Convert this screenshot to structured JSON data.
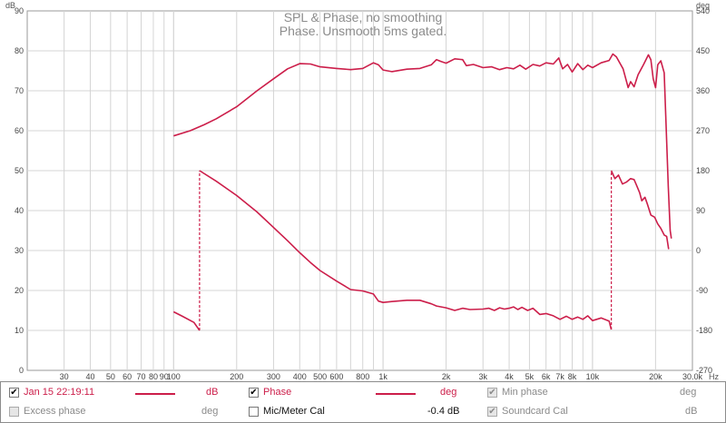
{
  "chart_data": {
    "type": "line",
    "title": "SPL & Phase, no smoothing",
    "subtitle": "Phase. Unsmooth 5ms gated.",
    "x_scale": "log",
    "xlim": [
      20,
      30000
    ],
    "x_ticks": [
      {
        "v": 30,
        "label": "30"
      },
      {
        "v": 40,
        "label": "40"
      },
      {
        "v": 50,
        "label": "50"
      },
      {
        "v": 60,
        "label": "60"
      },
      {
        "v": 70,
        "label": "70"
      },
      {
        "v": 80,
        "label": "80"
      },
      {
        "v": 90,
        "label": "90"
      },
      {
        "v": 100,
        "label": "100"
      },
      {
        "v": 200,
        "label": "200"
      },
      {
        "v": 300,
        "label": "300"
      },
      {
        "v": 400,
        "label": "400"
      },
      {
        "v": 500,
        "label": "500"
      },
      {
        "v": 600,
        "label": "600"
      },
      {
        "v": 800,
        "label": "800"
      },
      {
        "v": 1000,
        "label": "1k"
      },
      {
        "v": 2000,
        "label": "2k"
      },
      {
        "v": 3000,
        "label": "3k"
      },
      {
        "v": 4000,
        "label": "4k"
      },
      {
        "v": 5000,
        "label": "5k"
      },
      {
        "v": 6000,
        "label": "6k"
      },
      {
        "v": 7000,
        "label": "7k"
      },
      {
        "v": 8000,
        "label": "8k"
      },
      {
        "v": 10000,
        "label": "10k"
      },
      {
        "v": 20000,
        "label": "20k"
      },
      {
        "v": 30000,
        "label": "30.0k"
      }
    ],
    "x_unit": "Hz",
    "y_left": {
      "unit": "dB",
      "lim": [
        0,
        90
      ],
      "ticks": [
        0,
        10,
        20,
        30,
        40,
        50,
        60,
        70,
        80,
        90
      ]
    },
    "y_right": {
      "unit": "deg",
      "lim": [
        -270,
        540
      ],
      "ticks": [
        -270,
        -180,
        -90,
        0,
        90,
        180,
        270,
        360,
        450,
        540
      ]
    },
    "grid": true,
    "series": [
      {
        "name": "Jan 15 22:19:11",
        "unit": "dB",
        "axis": "left",
        "color": "#cc1e4a",
        "points": [
          [
            100,
            58.7
          ],
          [
            120,
            60
          ],
          [
            140,
            61.5
          ],
          [
            160,
            63
          ],
          [
            200,
            66
          ],
          [
            250,
            70
          ],
          [
            300,
            73
          ],
          [
            350,
            75.5
          ],
          [
            400,
            76.8
          ],
          [
            450,
            76.7
          ],
          [
            500,
            76
          ],
          [
            600,
            75.6
          ],
          [
            700,
            75.3
          ],
          [
            800,
            75.6
          ],
          [
            900,
            77
          ],
          [
            950,
            76.5
          ],
          [
            1000,
            75.2
          ],
          [
            1100,
            74.8
          ],
          [
            1300,
            75.4
          ],
          [
            1500,
            75.6
          ],
          [
            1700,
            76.5
          ],
          [
            1800,
            77.8
          ],
          [
            1900,
            77.3
          ],
          [
            2000,
            76.9
          ],
          [
            2200,
            78
          ],
          [
            2400,
            77.8
          ],
          [
            2500,
            76.3
          ],
          [
            2700,
            76.6
          ],
          [
            3000,
            75.8
          ],
          [
            3300,
            76
          ],
          [
            3600,
            75.3
          ],
          [
            3900,
            75.8
          ],
          [
            4200,
            75.5
          ],
          [
            4500,
            76.4
          ],
          [
            4800,
            75.4
          ],
          [
            5200,
            76.6
          ],
          [
            5600,
            76.2
          ],
          [
            6000,
            77
          ],
          [
            6500,
            76.7
          ],
          [
            6900,
            78.2
          ],
          [
            7200,
            75.5
          ],
          [
            7600,
            76.6
          ],
          [
            8000,
            74.7
          ],
          [
            8500,
            76.8
          ],
          [
            9000,
            75.3
          ],
          [
            9500,
            76.4
          ],
          [
            10000,
            75.8
          ],
          [
            11000,
            77
          ],
          [
            12000,
            77.6
          ],
          [
            12500,
            79.2
          ],
          [
            13000,
            78.5
          ],
          [
            14000,
            75.5
          ],
          [
            14800,
            70.8
          ],
          [
            15200,
            72.3
          ],
          [
            15800,
            71
          ],
          [
            16500,
            74
          ],
          [
            17500,
            76.5
          ],
          [
            18500,
            79
          ],
          [
            19000,
            77.8
          ],
          [
            19500,
            73
          ],
          [
            20000,
            70.8
          ],
          [
            20500,
            76.5
          ],
          [
            21200,
            77.5
          ],
          [
            22000,
            74.5
          ],
          [
            22500,
            60
          ],
          [
            23000,
            46
          ],
          [
            23500,
            35
          ],
          [
            23800,
            33
          ]
        ]
      },
      {
        "name": "Phase",
        "unit": "deg",
        "axis": "right",
        "color": "#cc1e4a",
        "dashed_wraps": true,
        "points": [
          [
            100,
            -138
          ],
          [
            110,
            -148
          ],
          [
            125,
            -162
          ],
          [
            133,
            -180
          ],
          null,
          [
            133,
            180
          ],
          [
            160,
            156
          ],
          [
            200,
            124
          ],
          [
            250,
            87
          ],
          [
            300,
            52
          ],
          [
            350,
            22
          ],
          [
            400,
            -5
          ],
          [
            450,
            -27
          ],
          [
            500,
            -45
          ],
          [
            600,
            -69
          ],
          [
            700,
            -88
          ],
          [
            800,
            -91
          ],
          [
            900,
            -98
          ],
          [
            950,
            -114
          ],
          [
            1000,
            -117
          ],
          [
            1100,
            -115
          ],
          [
            1300,
            -112
          ],
          [
            1500,
            -112
          ],
          [
            1700,
            -120
          ],
          [
            1800,
            -125
          ],
          [
            2000,
            -129
          ],
          [
            2200,
            -135
          ],
          [
            2400,
            -130
          ],
          [
            2600,
            -133
          ],
          [
            3000,
            -132
          ],
          [
            3200,
            -130
          ],
          [
            3400,
            -135
          ],
          [
            3600,
            -129
          ],
          [
            3800,
            -132
          ],
          [
            4000,
            -130
          ],
          [
            4200,
            -127
          ],
          [
            4400,
            -133
          ],
          [
            4600,
            -128
          ],
          [
            4900,
            -135
          ],
          [
            5200,
            -130
          ],
          [
            5600,
            -144
          ],
          [
            6000,
            -142
          ],
          [
            6500,
            -147
          ],
          [
            7000,
            -155
          ],
          [
            7500,
            -148
          ],
          [
            8000,
            -155
          ],
          [
            8500,
            -150
          ],
          [
            9000,
            -155
          ],
          [
            9500,
            -147
          ],
          [
            10000,
            -158
          ],
          [
            11000,
            -152
          ],
          [
            12000,
            -159
          ],
          [
            12300,
            -178
          ],
          null,
          [
            12300,
            180
          ],
          [
            12800,
            162
          ],
          [
            13300,
            170
          ],
          [
            13900,
            150
          ],
          [
            14500,
            154
          ],
          [
            15200,
            162
          ],
          [
            15800,
            160
          ],
          [
            16200,
            148
          ],
          [
            16800,
            130
          ],
          [
            17200,
            112
          ],
          [
            17800,
            120
          ],
          [
            18300,
            104
          ],
          [
            19000,
            80
          ],
          [
            19800,
            75
          ],
          [
            20500,
            60
          ],
          [
            21200,
            50
          ],
          [
            22000,
            35
          ],
          [
            22600,
            32
          ],
          [
            23100,
            3
          ]
        ]
      }
    ]
  },
  "legend": {
    "row1": [
      {
        "checked": true,
        "label": "Jan 15 22:19:11",
        "unit": "dB",
        "enabled": true
      },
      {
        "checked": true,
        "label": "Phase",
        "unit": "deg",
        "enabled": true
      },
      {
        "checked": true,
        "label": "Min phase",
        "unit": "deg",
        "enabled": false
      }
    ],
    "row2": [
      {
        "checked": false,
        "label": "Excess phase",
        "unit": "deg",
        "enabled": false
      },
      {
        "checked": false,
        "label": "Mic/Meter Cal",
        "unit": "-0.4 dB",
        "enabled": true
      },
      {
        "checked": true,
        "label": "Soundcard Cal",
        "unit": "dB",
        "enabled": false
      }
    ]
  }
}
